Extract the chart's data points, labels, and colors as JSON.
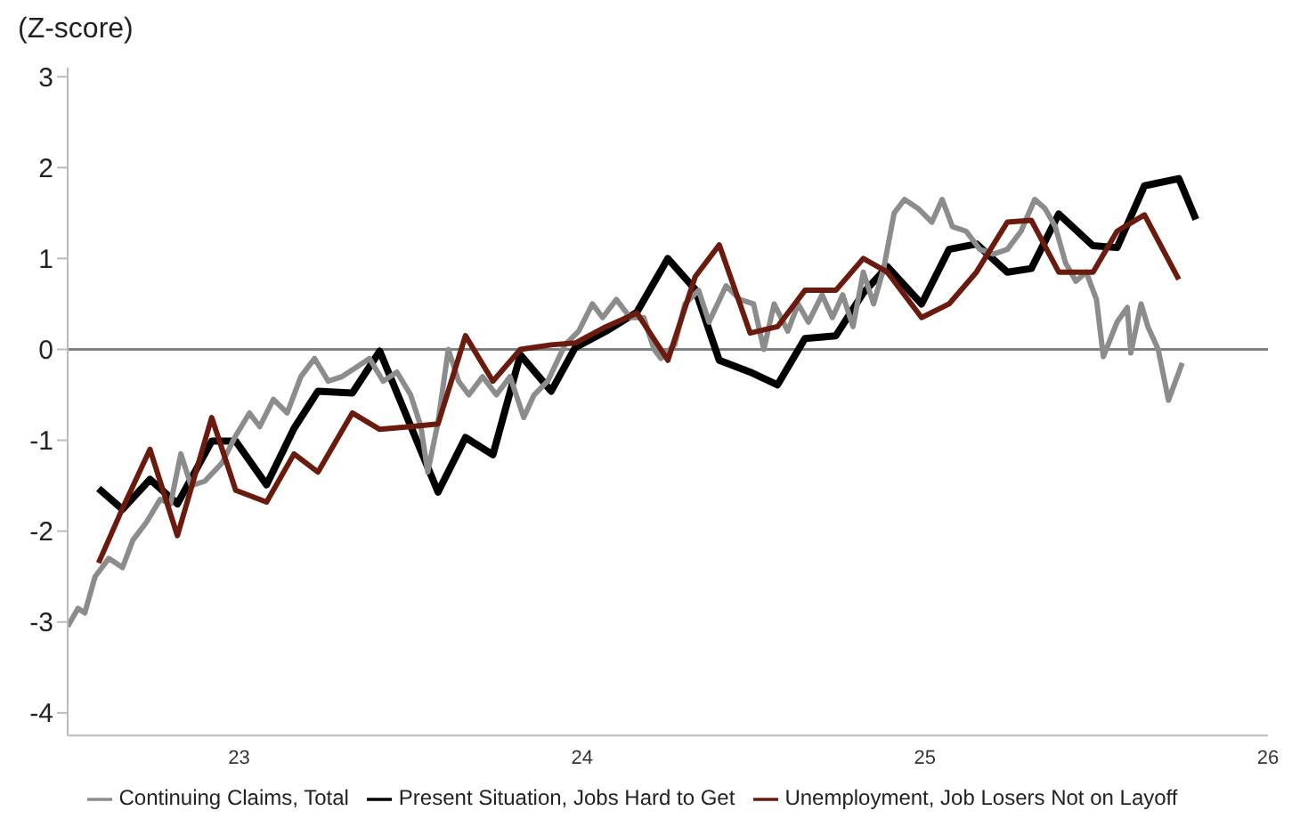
{
  "chart_data": {
    "type": "line",
    "ylabel": "(Z-score)",
    "xlim": [
      22.5,
      26
    ],
    "xticks": [
      23,
      24,
      25,
      26
    ],
    "ylim": [
      -4.25,
      3.1
    ],
    "yticks": [
      -4,
      -3,
      -2,
      -1,
      0,
      1,
      2,
      3
    ],
    "legend": "bottom",
    "line_style": "solid",
    "ref_lines": [
      {
        "axis": "y",
        "value": 0,
        "color": "#808080"
      }
    ],
    "series": [
      {
        "name": "Present Situation, Jobs Hard to Get",
        "color": "#000000",
        "x": [
          22.59,
          22.66,
          22.74,
          22.82,
          22.92,
          22.99,
          23.08,
          23.16,
          23.23,
          23.33,
          23.41,
          23.58,
          23.66,
          23.74,
          23.82,
          23.91,
          23.98,
          24.07,
          24.16,
          24.25,
          24.33,
          24.4,
          24.49,
          24.57,
          24.65,
          24.74,
          24.82,
          24.89,
          24.99,
          25.07,
          25.15,
          25.24,
          25.31,
          25.39,
          25.49,
          25.56,
          25.64,
          25.74,
          25.79
        ],
        "values": [
          -1.53,
          -1.76,
          -1.43,
          -1.7,
          -1.01,
          -1.01,
          -1.49,
          -0.87,
          -0.46,
          -0.48,
          -0.02,
          -1.57,
          -0.97,
          -1.16,
          -0.06,
          -0.46,
          0.02,
          0.2,
          0.41,
          1.0,
          0.66,
          -0.12,
          -0.25,
          -0.39,
          0.12,
          0.15,
          0.62,
          0.91,
          0.5,
          1.1,
          1.16,
          0.85,
          0.89,
          1.49,
          1.14,
          1.12,
          1.8,
          1.88,
          1.43
        ]
      },
      {
        "name": "Continuing Claims, Total",
        "color": "#8c8c8c",
        "x": [
          22.5,
          22.53,
          22.55,
          22.58,
          22.62,
          22.66,
          22.69,
          22.73,
          22.77,
          22.8,
          22.83,
          22.86,
          22.9,
          22.95,
          22.99,
          23.03,
          23.06,
          23.1,
          23.14,
          23.18,
          23.22,
          23.26,
          23.3,
          23.34,
          23.38,
          23.42,
          23.46,
          23.5,
          23.53,
          23.55,
          23.58,
          23.61,
          23.64,
          23.67,
          23.71,
          23.75,
          23.79,
          23.83,
          23.86,
          23.9,
          23.95,
          23.99,
          24.03,
          24.06,
          24.1,
          24.14,
          24.18,
          24.21,
          24.23,
          24.27,
          24.3,
          24.34,
          24.37,
          24.42,
          24.46,
          24.5,
          24.53,
          24.56,
          24.6,
          24.63,
          24.66,
          24.7,
          24.73,
          24.76,
          24.79,
          24.82,
          24.85,
          24.88,
          24.91,
          24.94,
          24.98,
          25.02,
          25.05,
          25.08,
          25.12,
          25.16,
          25.2,
          25.24,
          25.28,
          25.32,
          25.35,
          25.38,
          25.41,
          25.44,
          25.47,
          25.5,
          25.52,
          25.56,
          25.59,
          25.6,
          25.63,
          25.65,
          25.68,
          25.71,
          25.75
        ],
        "values": [
          -3.05,
          -2.85,
          -2.9,
          -2.5,
          -2.3,
          -2.4,
          -2.1,
          -1.9,
          -1.65,
          -1.7,
          -1.15,
          -1.5,
          -1.45,
          -1.25,
          -0.95,
          -0.7,
          -0.85,
          -0.55,
          -0.7,
          -0.3,
          -0.1,
          -0.35,
          -0.3,
          -0.2,
          -0.1,
          -0.35,
          -0.25,
          -0.5,
          -0.85,
          -1.35,
          -0.8,
          0.0,
          -0.35,
          -0.5,
          -0.3,
          -0.5,
          -0.3,
          -0.75,
          -0.5,
          -0.35,
          0.05,
          0.2,
          0.5,
          0.35,
          0.55,
          0.35,
          0.35,
          0.0,
          -0.1,
          0.05,
          0.5,
          0.65,
          0.3,
          0.7,
          0.55,
          0.5,
          0.0,
          0.5,
          0.2,
          0.5,
          0.3,
          0.6,
          0.35,
          0.6,
          0.25,
          0.85,
          0.5,
          0.9,
          1.5,
          1.65,
          1.55,
          1.4,
          1.65,
          1.35,
          1.3,
          1.1,
          1.05,
          1.1,
          1.3,
          1.65,
          1.55,
          1.35,
          0.95,
          0.75,
          0.85,
          0.55,
          -0.08,
          0.3,
          0.46,
          -0.04,
          0.5,
          0.25,
          0.0,
          -0.56,
          -0.15
        ]
      },
      {
        "name": "Unemployment, Job Losers Not on Layoff",
        "color": "#6b1a0e",
        "x": [
          22.59,
          22.66,
          22.74,
          22.82,
          22.92,
          22.99,
          23.08,
          23.16,
          23.23,
          23.33,
          23.41,
          23.5,
          23.58,
          23.66,
          23.74,
          23.82,
          23.91,
          23.98,
          24.07,
          24.16,
          24.25,
          24.33,
          24.4,
          24.49,
          24.57,
          24.65,
          24.74,
          24.82,
          24.89,
          24.99,
          25.07,
          25.15,
          25.24,
          25.31,
          25.39,
          25.49,
          25.56,
          25.64,
          25.74
        ],
        "values": [
          -2.35,
          -1.75,
          -1.1,
          -2.05,
          -0.75,
          -1.55,
          -1.68,
          -1.15,
          -1.35,
          -0.7,
          -0.88,
          -0.85,
          -0.82,
          0.15,
          -0.35,
          0.0,
          0.05,
          0.07,
          0.25,
          0.4,
          -0.12,
          0.8,
          1.15,
          0.18,
          0.25,
          0.65,
          0.65,
          1.0,
          0.85,
          0.35,
          0.5,
          0.85,
          1.4,
          1.42,
          0.85,
          0.85,
          1.3,
          1.48,
          0.77
        ]
      }
    ]
  }
}
